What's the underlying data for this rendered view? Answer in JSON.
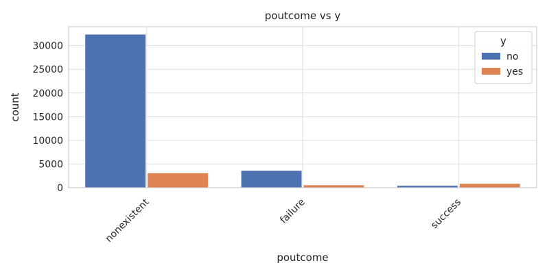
{
  "chart_data": {
    "type": "bar",
    "title": "poutcome vs y",
    "xlabel": "poutcome",
    "ylabel": "count",
    "categories": [
      "nonexistent",
      "failure",
      "success"
    ],
    "series": [
      {
        "name": "no",
        "values": [
          32422,
          3647,
          479
        ],
        "color": "#4c72b0"
      },
      {
        "name": "yes",
        "values": [
          3141,
          605,
          894
        ],
        "color": "#dd8452"
      }
    ],
    "ylim": [
      0,
      34000
    ],
    "yticks": [
      0,
      5000,
      10000,
      15000,
      20000,
      25000,
      30000
    ],
    "grid": true,
    "legend": {
      "title": "y",
      "placement": "top-right"
    }
  }
}
